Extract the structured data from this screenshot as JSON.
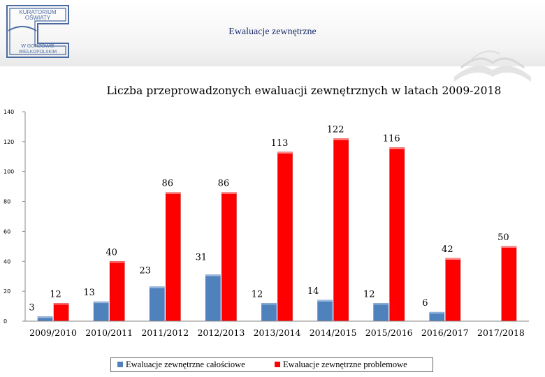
{
  "header": {
    "title": "Ewaluacje zewnętrzne",
    "logo_lines": [
      "KURATORIUM",
      "OŚWIATY",
      "W GORZOWIE",
      "WIELKOPOLSKIM"
    ]
  },
  "colors": {
    "series1": "#4f81bd",
    "series2": "#ff0000",
    "header_text": "#1b2a6b",
    "logo": "#4a6aa0"
  },
  "chart_data": {
    "type": "bar",
    "title": "Liczba przeprowadzonych ewaluacji zewnętrznych w latach 2009-2018",
    "xlabel": "",
    "ylabel": "",
    "categories": [
      "2009/2010",
      "2010/2011",
      "2011/2012",
      "2012/2013",
      "2013/2014",
      "2014/2015",
      "2015/2016",
      "2016/2017",
      "2017/2018"
    ],
    "series": [
      {
        "name": "Ewaluacje zewnętrzne całościowe",
        "values": [
          3,
          13,
          23,
          31,
          12,
          14,
          12,
          6,
          null
        ]
      },
      {
        "name": "Ewaluacje zewnętrzne problemowe",
        "values": [
          12,
          40,
          86,
          86,
          113,
          122,
          116,
          42,
          50
        ]
      }
    ],
    "ylim": [
      0,
      140
    ],
    "yticks": [
      "0",
      "20",
      "40",
      "60",
      "80",
      "100",
      "120",
      "140"
    ],
    "grid": false,
    "legend_position": "bottom"
  }
}
